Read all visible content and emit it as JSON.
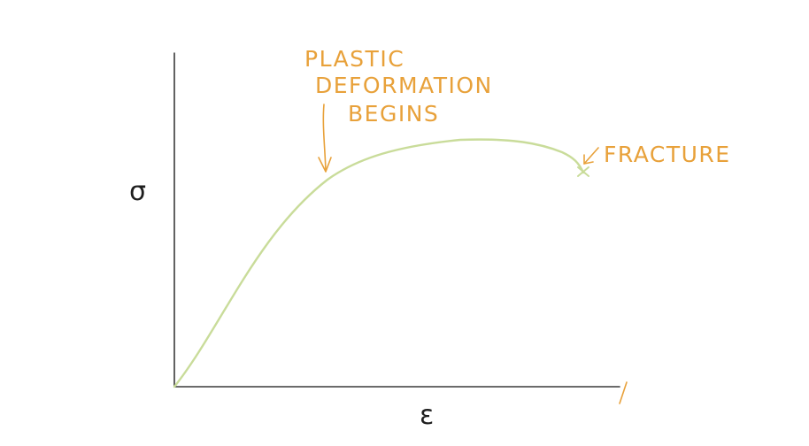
{
  "diagram": {
    "y_axis_symbol": "σ",
    "x_axis_symbol": "ε",
    "annotations": {
      "plastic_line1": "PLASTIC",
      "plastic_line2": "DEFORMATION",
      "plastic_line3": "BEGINS",
      "fracture": "FRACTURE"
    },
    "colors": {
      "axes": "#3a3a3a",
      "curve": "#c9dc9a",
      "annotation": "#e8a13a"
    }
  }
}
